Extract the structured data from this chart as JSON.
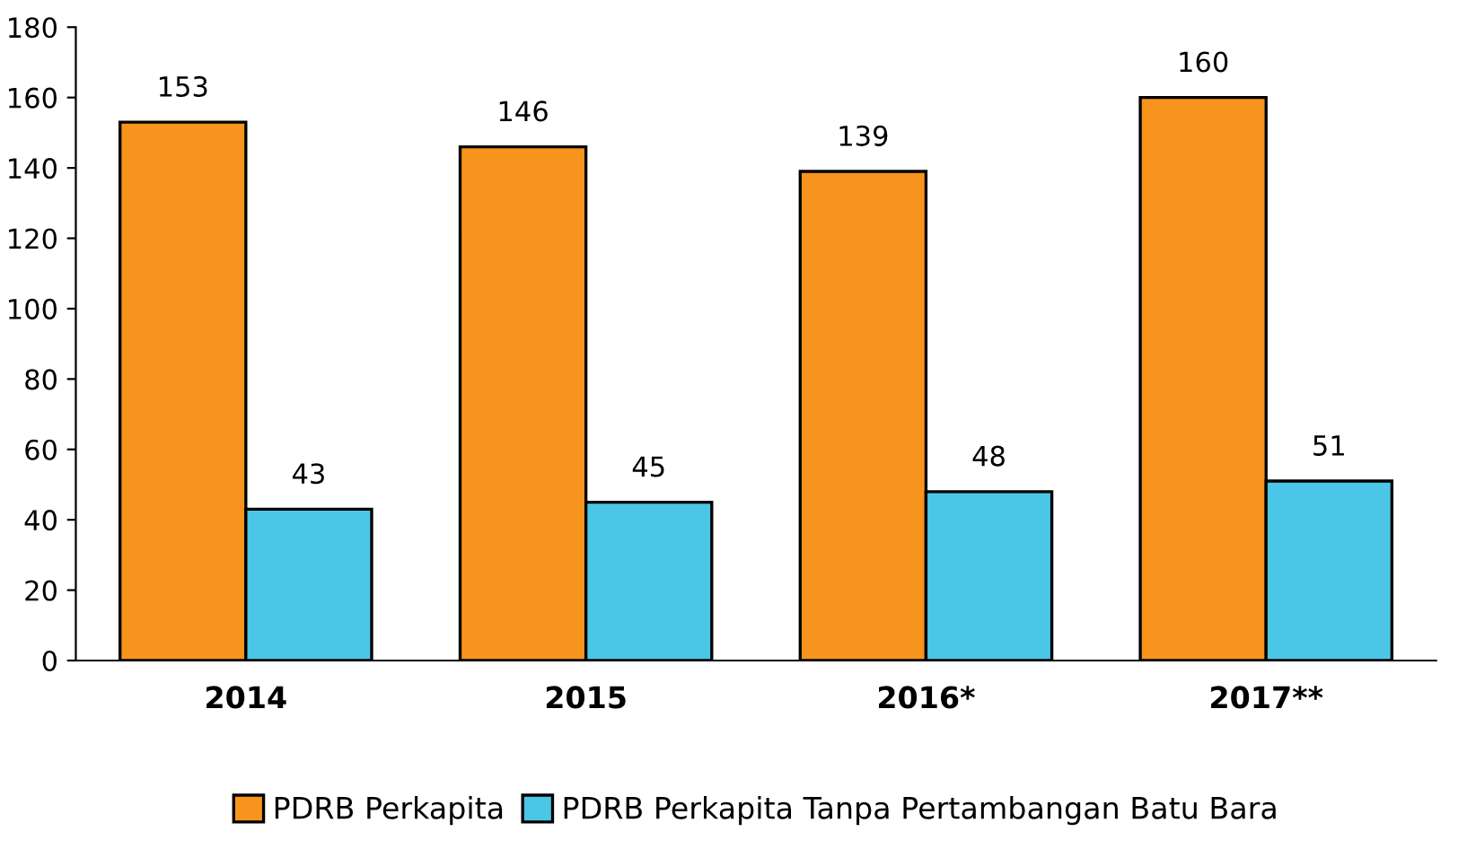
{
  "chart_data": {
    "type": "bar",
    "categories": [
      "2014",
      "2015",
      "2016*",
      "2017**"
    ],
    "series": [
      {
        "name": "PDRB Perkapita",
        "color": "#f7941d",
        "values": [
          153,
          146,
          139,
          160
        ]
      },
      {
        "name": "PDRB Perkapita Tanpa Pertambangan Batu Bara",
        "color": "#4cc6e6",
        "values": [
          43,
          45,
          48,
          51
        ]
      }
    ],
    "ylim": [
      0,
      180
    ],
    "yticks": [
      0,
      20,
      40,
      60,
      80,
      100,
      120,
      140,
      160,
      180
    ],
    "grid": false,
    "legend": "bottom",
    "data_labels": true
  }
}
